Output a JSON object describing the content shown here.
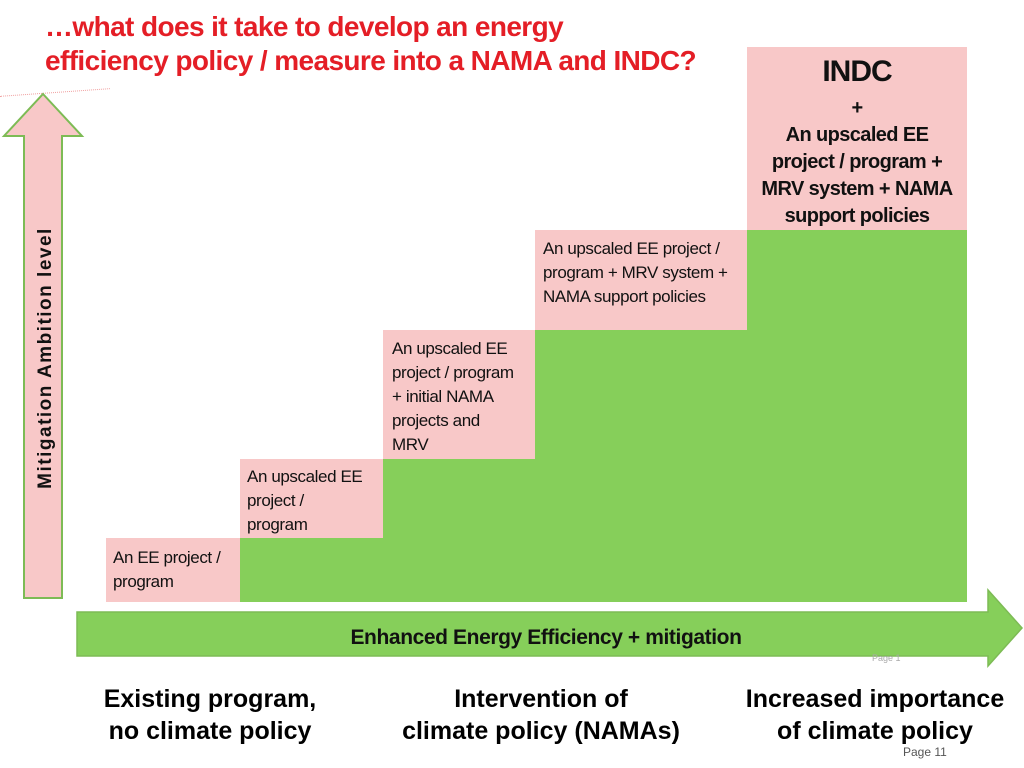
{
  "title": {
    "line1": "…what does it take to develop an energy",
    "line2": "efficiency policy / measure into a NAMA and INDC?"
  },
  "vertical_axis": {
    "label": "Mitigation Ambition level"
  },
  "horizontal_arrow": {
    "label": "Enhanced Energy Efficiency + mitigation"
  },
  "steps": [
    {
      "lines": [
        "An EE project /",
        "program"
      ]
    },
    {
      "lines": [
        "An upscaled EE",
        "project /",
        "program"
      ]
    },
    {
      "lines": [
        "An upscaled EE",
        "project / program",
        "+ initial NAMA",
        "projects and",
        "MRV"
      ]
    },
    {
      "lines": [
        "An upscaled EE project /",
        "program + MRV system +",
        "NAMA support policies"
      ]
    }
  ],
  "indc_step": {
    "heading": "INDC",
    "plus": "+",
    "lines": [
      "An upscaled EE",
      "project / program +",
      "MRV system + NAMA",
      "support policies"
    ]
  },
  "footer": {
    "left": [
      "Existing program,",
      "no climate policy"
    ],
    "center": [
      "Intervention of",
      "climate policy (NAMAs)"
    ],
    "right": [
      "Increased importance",
      "of climate policy"
    ]
  },
  "page_label": "Page 11",
  "faint_page_label": "Page 1",
  "colors": {
    "title": "#e41e26",
    "pink": "#f8c8c8",
    "green": "#86cf5a",
    "arrow_border": "#7dbb55"
  }
}
